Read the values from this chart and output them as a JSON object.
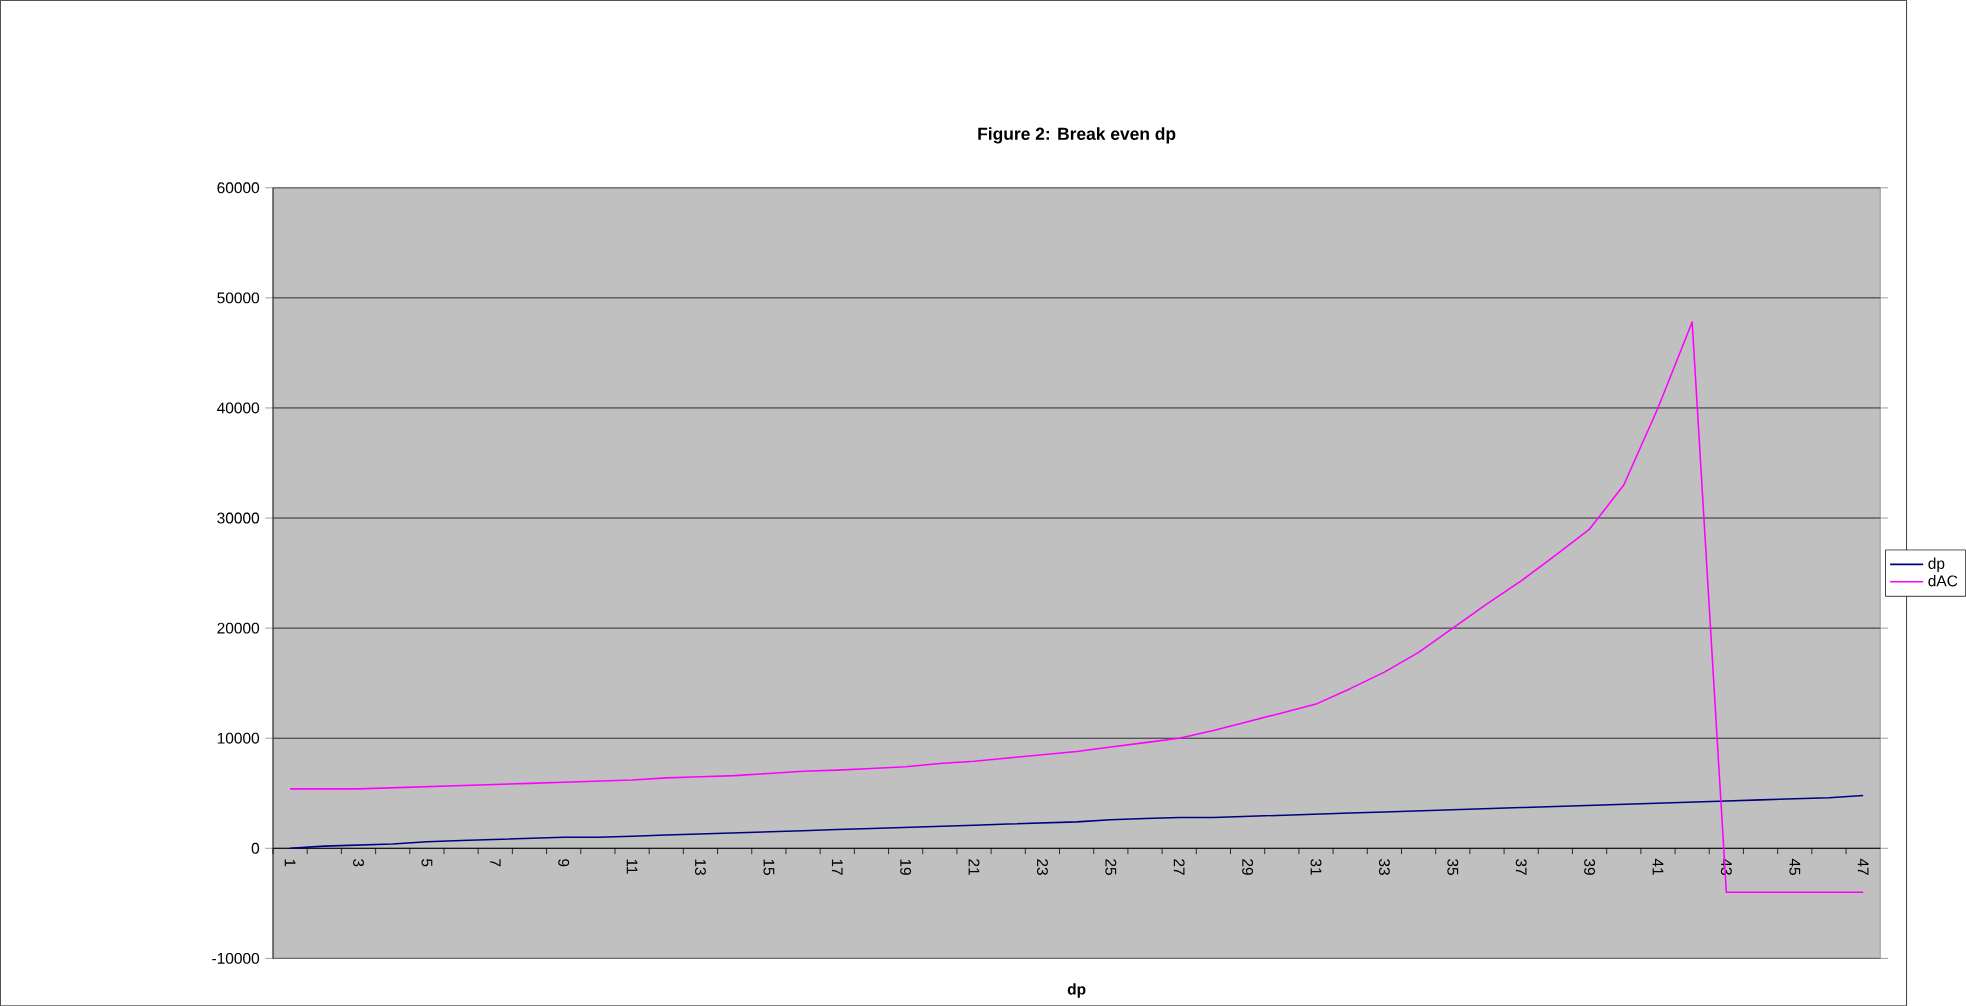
{
  "chart_data": {
    "type": "line",
    "title": "Figure 2: Break even dp",
    "xlabel": "dp",
    "categories": [
      "1",
      null,
      "3",
      null,
      "5",
      null,
      "7",
      null,
      "9",
      null,
      "11",
      null,
      "13",
      null,
      "15",
      null,
      "17",
      null,
      "19",
      null,
      "21",
      null,
      "23",
      null,
      "25",
      null,
      "27",
      null,
      "29",
      null,
      "31",
      null,
      "33",
      null,
      "35",
      null,
      "37",
      null,
      "39",
      null,
      "41",
      null,
      "43",
      null,
      "45",
      null,
      "47"
    ],
    "series": [
      {
        "name": "dp",
        "color": "#000080",
        "values": [
          0,
          200,
          300,
          400,
          600,
          700,
          800,
          900,
          1000,
          1000,
          1100,
          1200,
          1300,
          1400,
          1500,
          1600,
          1700,
          1800,
          1900,
          2000,
          2100,
          2200,
          2300,
          2400,
          2600,
          2700,
          2800,
          2800,
          2900,
          3000,
          3100,
          3200,
          3300,
          3400,
          3500,
          3600,
          3700,
          3800,
          3900,
          4000,
          4100,
          4200,
          4300,
          4400,
          4500,
          4600,
          4800
        ]
      },
      {
        "name": "dAC",
        "color": "#ff00ff",
        "values": [
          5400,
          5400,
          5400,
          5500,
          5600,
          5700,
          5800,
          5900,
          6000,
          6100,
          6200,
          6400,
          6500,
          6600,
          6800,
          7000,
          7100,
          7250,
          7400,
          7700,
          7900,
          8200,
          8500,
          8800,
          9200,
          9600,
          10000,
          10700,
          11500,
          12300,
          13100,
          14500,
          16000,
          17800,
          20000,
          22200,
          24300,
          26600,
          29000,
          33000,
          40000,
          47800,
          -4000,
          -4000,
          -4000,
          -4000,
          -4000
        ]
      }
    ],
    "ylim": [
      -10000,
      60000
    ],
    "yticks": [
      -10000,
      0,
      10000,
      20000,
      30000,
      40000,
      50000,
      60000
    ],
    "grid": "y",
    "legend": "right",
    "marker": "none",
    "line_style": "solid"
  }
}
